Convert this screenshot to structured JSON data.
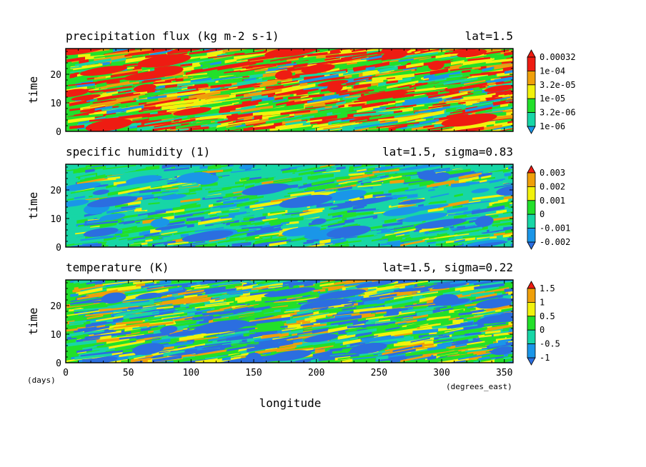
{
  "colors": {
    "blue": "#1a96e8",
    "darkblue": "#2b6ee0",
    "cyan": "#17d6a6",
    "green": "#22e02a",
    "yellow": "#f2f20c",
    "orange": "#f0a00a",
    "red": "#ee1c12",
    "white": "#ffffff"
  },
  "shared": {
    "xlabel": "longitude",
    "x_unit": "(degrees_east)",
    "y_unit": "(days)",
    "xticks": [
      0,
      50,
      100,
      150,
      200,
      250,
      300,
      350
    ],
    "xlim": [
      0,
      357
    ]
  },
  "chart_data": [
    {
      "type": "heatmap",
      "title": "precipitation flux (kg m-2 s-1)",
      "subtitle": "lat=1.5",
      "ylabel": "time",
      "xlim": [
        0,
        357
      ],
      "ylim": [
        0,
        29
      ],
      "yticks": [
        0,
        10,
        20
      ],
      "colorbar": {
        "labels": [
          "1e-06",
          "3.2e-06",
          "1e-05",
          "3.2e-05",
          "1e-04",
          "0.00032"
        ],
        "colors": [
          "#1a96e8",
          "#17d6a6",
          "#22e02a",
          "#f2f20c",
          "#f0a00a",
          "#ee1c12",
          "#ee1c12"
        ]
      }
    },
    {
      "type": "heatmap",
      "title": "specific humidity (1)",
      "subtitle": "lat=1.5, sigma=0.83",
      "ylabel": "time",
      "xlim": [
        0,
        357
      ],
      "ylim": [
        0,
        29
      ],
      "yticks": [
        0,
        10,
        20
      ],
      "colorbar": {
        "labels": [
          "-0.002",
          "-0.001",
          "0",
          "0.001",
          "0.002",
          "0.003"
        ],
        "colors": [
          "#2b6ee0",
          "#1a96e8",
          "#17d6a6",
          "#22e02a",
          "#f2f20c",
          "#f0a00a",
          "#ee1c12"
        ]
      }
    },
    {
      "type": "heatmap",
      "title": "temperature (K)",
      "subtitle": "lat=1.5, sigma=0.22",
      "ylabel": "time",
      "xlim": [
        0,
        357
      ],
      "ylim": [
        0,
        29
      ],
      "yticks": [
        0,
        10,
        20
      ],
      "colorbar": {
        "labels": [
          "-1",
          "-0.5",
          "0",
          "0.5",
          "1",
          "1.5"
        ],
        "colors": [
          "#2b6ee0",
          "#1a96e8",
          "#17d6a6",
          "#22e02a",
          "#f2f20c",
          "#f0a00a",
          "#ee1c12"
        ]
      }
    }
  ]
}
